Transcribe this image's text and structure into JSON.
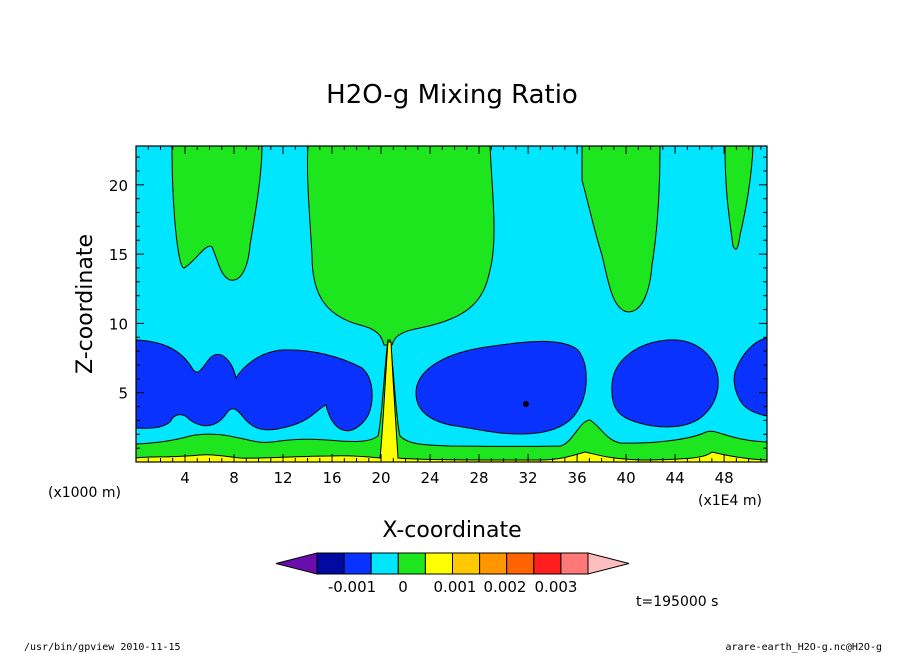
{
  "chart_data": {
    "type": "contour",
    "title": "H2O-g Mixing Ratio",
    "xlabel": "X-coordinate",
    "ylabel": "Z-coordinate",
    "x_unit_left": "(x1000 m)",
    "x_unit_right": "(x1E4 m)",
    "xlim": [
      0,
      51.5
    ],
    "ylim": [
      0,
      22.8
    ],
    "x_ticks": [
      4,
      8,
      12,
      16,
      20,
      24,
      28,
      32,
      36,
      40,
      44,
      48
    ],
    "y_ticks": [
      5,
      10,
      15,
      20
    ],
    "x_tick_labels": [
      "4",
      "8",
      "12",
      "16",
      "20",
      "24",
      "28",
      "32",
      "36",
      "40",
      "44",
      "48"
    ],
    "y_tick_labels": [
      "5",
      "10",
      "15",
      "20"
    ],
    "colorbar": {
      "colors": [
        "#6a0dad",
        "#000aa0",
        "#0a32ff",
        "#00e6ff",
        "#1ee61e",
        "#ffff00",
        "#ffc800",
        "#ff9600",
        "#ff6400",
        "#ff1e1e",
        "#ff7878",
        "#ffbebe"
      ],
      "labels": [
        "-0.001",
        "0",
        "0.001",
        "0.002",
        "0.003"
      ]
    },
    "regions": [
      {
        "level": "background",
        "color": "#00e6ff"
      },
      {
        "level": "-0.001",
        "color": "#0a32ff",
        "note": "mid-level dry bands z ~ 2-9"
      },
      {
        "level": "0",
        "color": "#1ee61e",
        "note": "upper plumes and near-surface layer"
      },
      {
        "level": "0.001",
        "color": "#ffff00",
        "note": "surface layer and column near x=20"
      }
    ]
  },
  "time_label": "t=195000 s",
  "footer_left": "/usr/bin/gpview   2010-11-15",
  "footer_right": "arare-earth_H2O-g.nc@H2O-g",
  "colors": {
    "cyan": "#00e6ff",
    "green": "#1ee61e",
    "blue": "#0a32ff",
    "yellow": "#ffff00"
  }
}
